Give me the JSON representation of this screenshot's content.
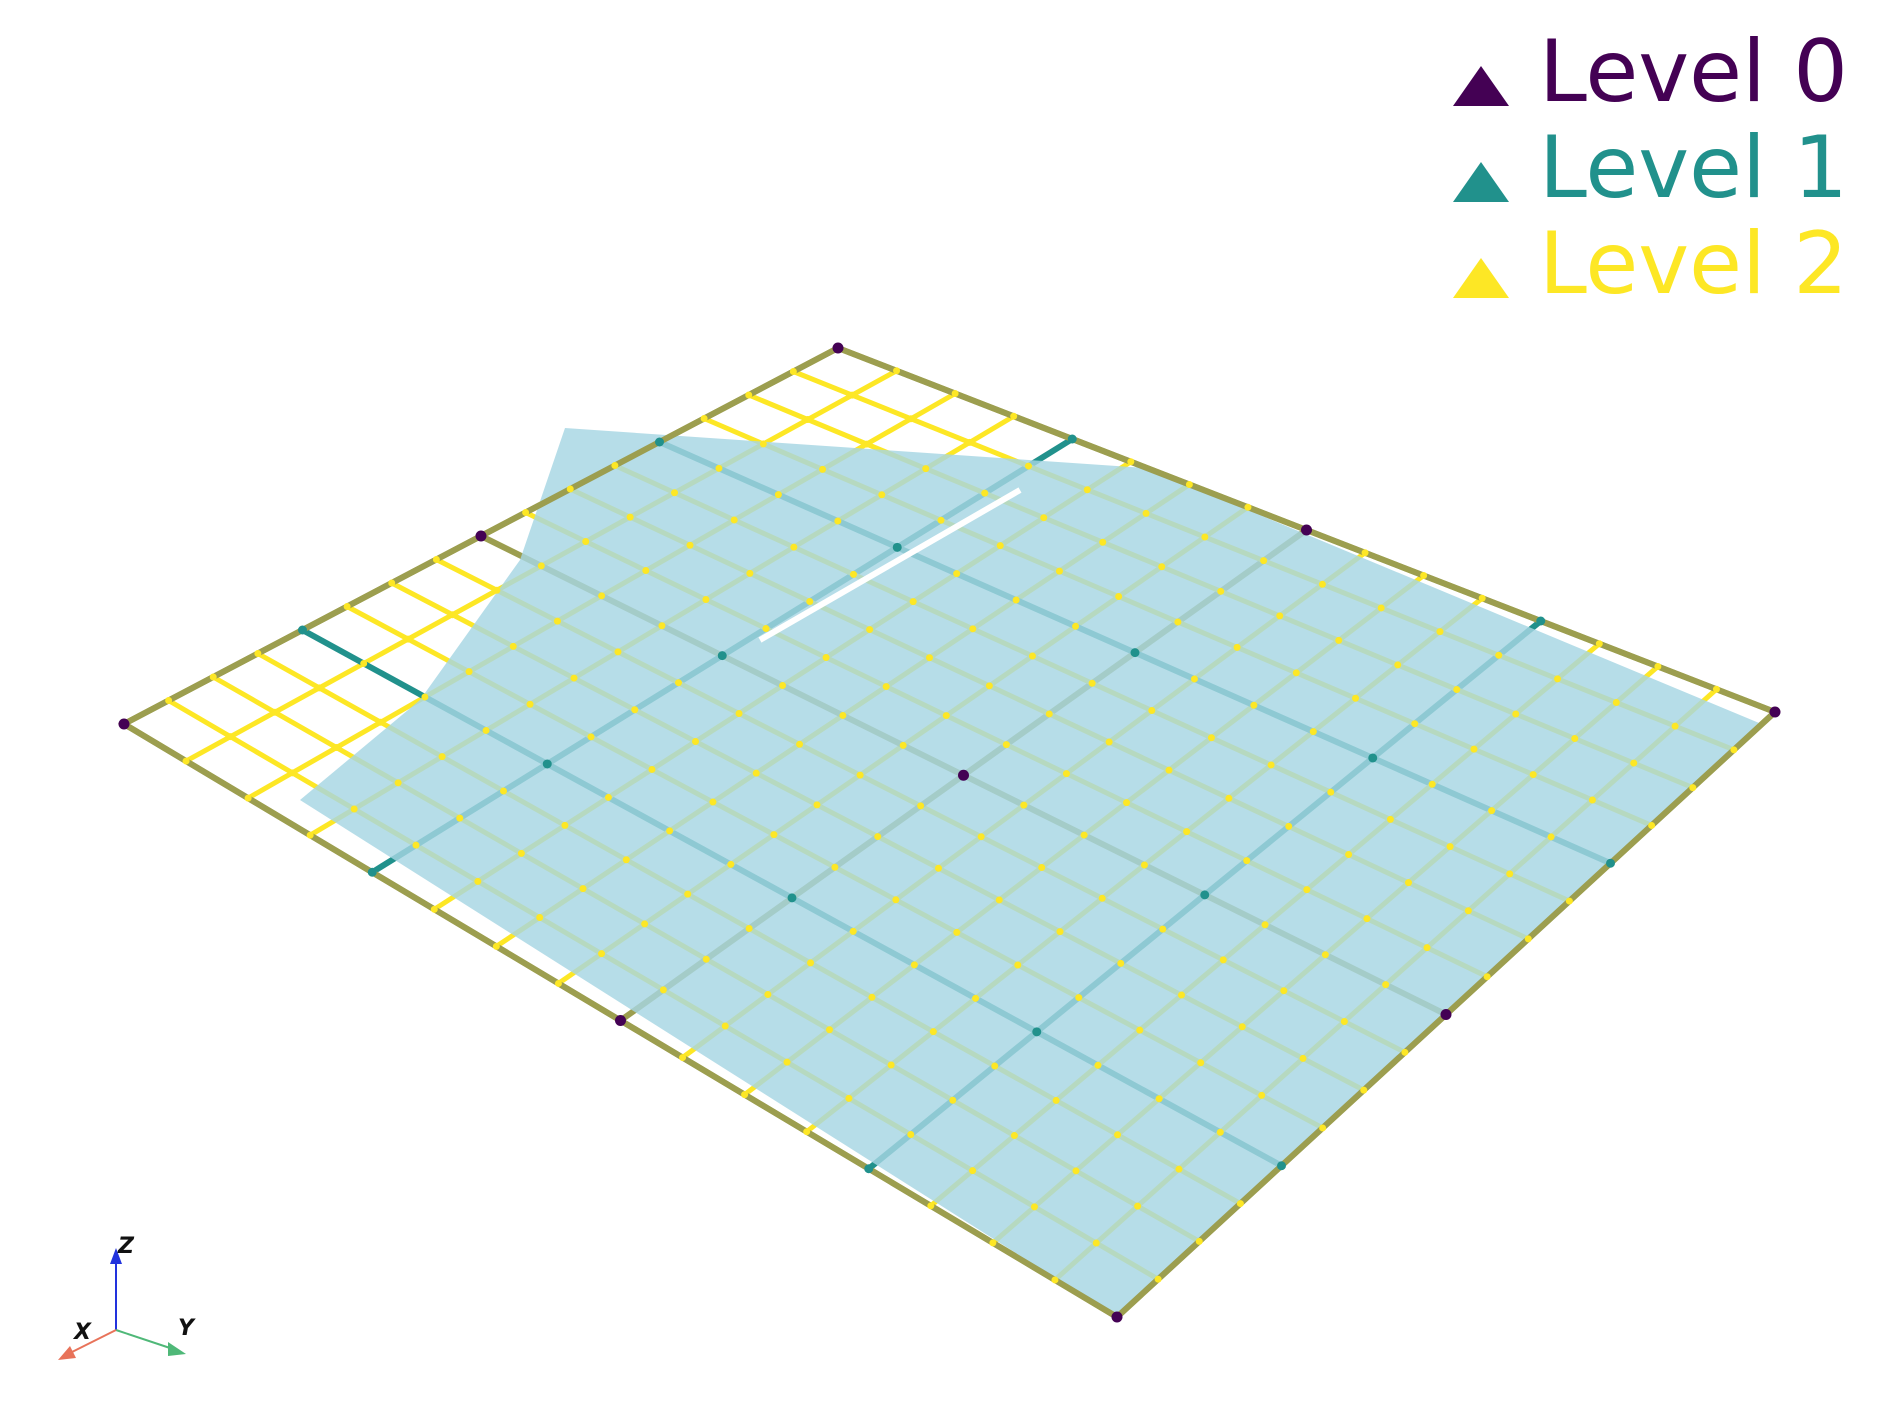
{
  "legend": {
    "items": [
      {
        "label": "Level 0",
        "color": "#440154",
        "marker": "triangle-icon"
      },
      {
        "label": "Level 1",
        "color": "#21918c",
        "marker": "triangle-icon"
      },
      {
        "label": "Level 2",
        "color": "#fde725",
        "marker": "triangle-icon"
      }
    ]
  },
  "axes_widget": {
    "x_label": "X",
    "y_label": "Y",
    "z_label": "Z",
    "x_color": "#e8735a",
    "y_color": "#4fb878",
    "z_color": "#2233dd"
  },
  "scene": {
    "surface_color": "#a6d5e3",
    "edge_color": "#9c9e4f",
    "grid_levels": 3
  }
}
